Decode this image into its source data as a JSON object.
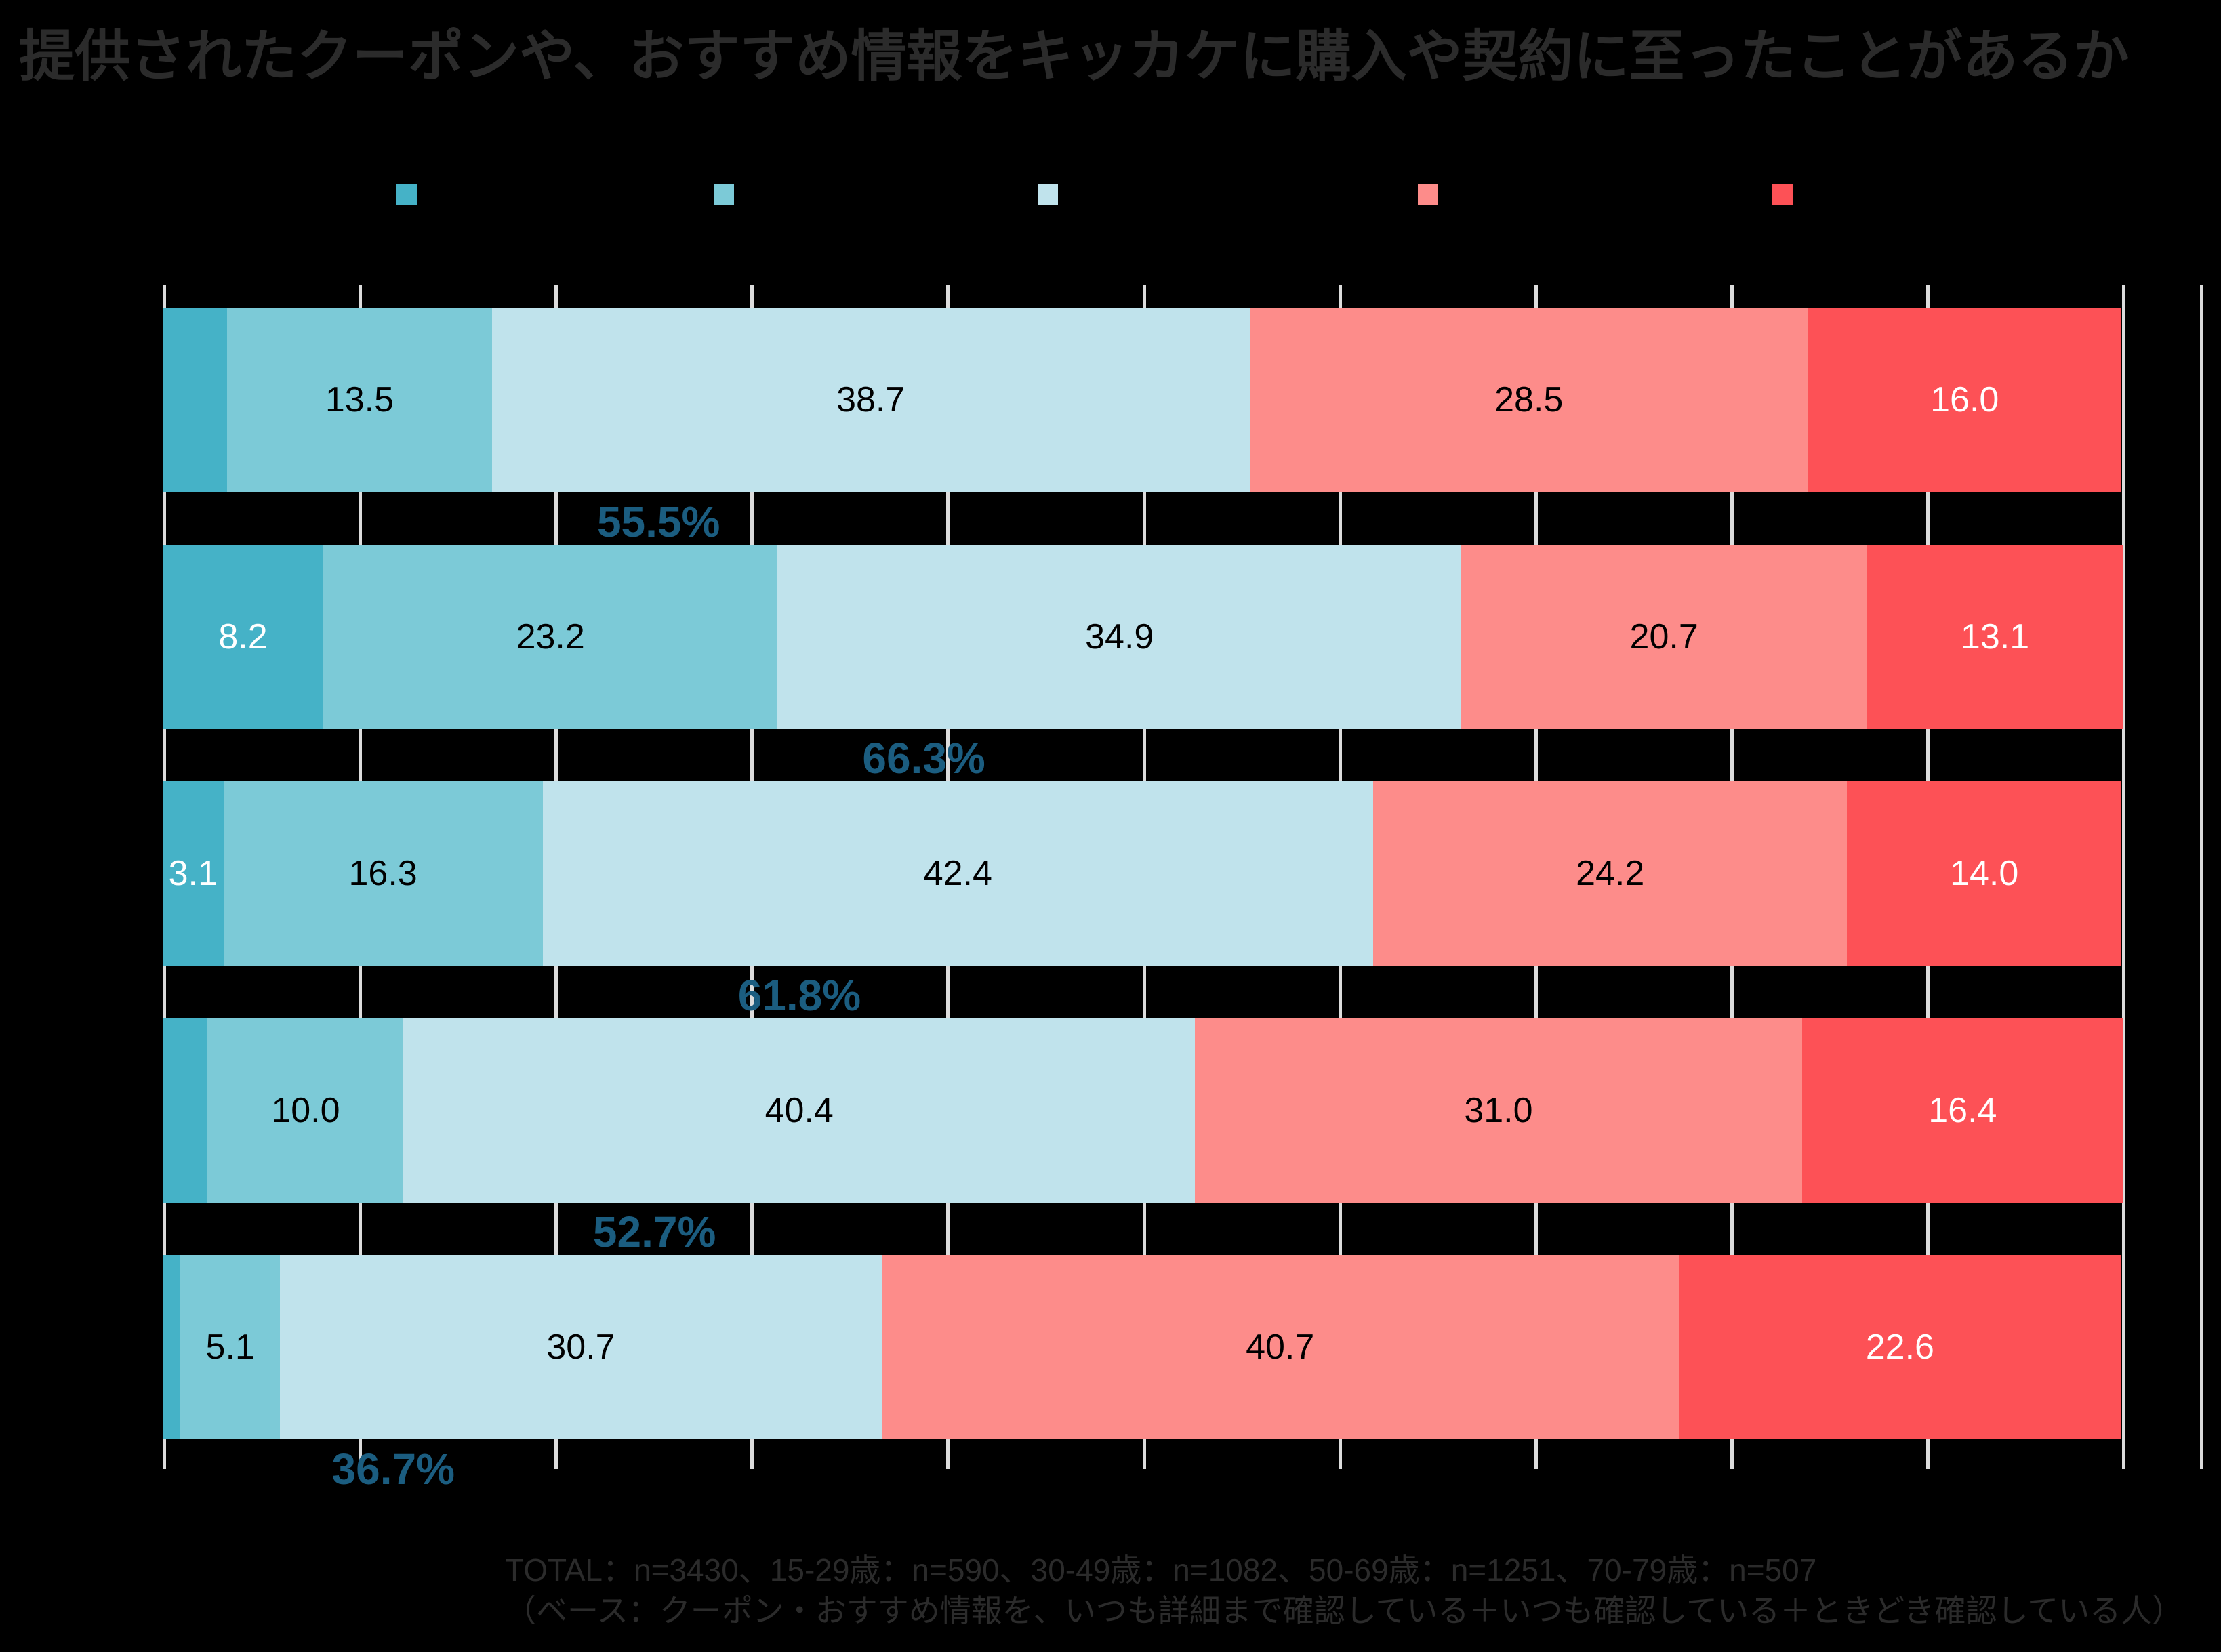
{
  "title": "提供されたクーポンや、おすすめ情報をキッカケに購入や契約に至ったことがあるか",
  "palette": {
    "background": "#000000",
    "faint_text": "#2b2b2b",
    "gridline": "#dcdcdc",
    "subtotal_text": "#1b5d80",
    "segment_label_dark": "#000000",
    "segment_label_light": "#ffffff"
  },
  "legend": {
    "labels_visible": false,
    "swatches": [
      {
        "name": "series-1-swatch",
        "color": "#45b2c7"
      },
      {
        "name": "series-2-swatch",
        "color": "#7ccad7"
      },
      {
        "name": "series-3-swatch",
        "color": "#c0e3ec"
      },
      {
        "name": "series-4-swatch",
        "color": "#fd8c8a"
      },
      {
        "name": "series-5-swatch",
        "color": "#fd5156"
      }
    ]
  },
  "chart_data": {
    "type": "bar",
    "orientation": "horizontal",
    "stacked": true,
    "title": "提供されたクーポンや、おすすめ情報をキッカケに購入や契約に至ったことがあるか",
    "axis": {
      "min": 0,
      "max": 100,
      "gridline_step": 10,
      "tick_labels_visible": false,
      "grid": true
    },
    "category_labels_visible": false,
    "series_colors": [
      "#45b2c7",
      "#7ccad7",
      "#c0e3ec",
      "#fd8c8a",
      "#fd5156"
    ],
    "rows": [
      {
        "segments": [
          {
            "value": 3.3,
            "label": ""
          },
          {
            "value": 13.5,
            "label": "13.5"
          },
          {
            "value": 38.7,
            "label": "38.7"
          },
          {
            "value": 28.5,
            "label": "28.5"
          },
          {
            "value": 16.0,
            "label": "16.0"
          }
        ],
        "subtotal": "55.5%"
      },
      {
        "segments": [
          {
            "value": 8.2,
            "label": "8.2"
          },
          {
            "value": 23.2,
            "label": "23.2"
          },
          {
            "value": 34.9,
            "label": "34.9"
          },
          {
            "value": 20.7,
            "label": "20.7"
          },
          {
            "value": 13.1,
            "label": "13.1"
          }
        ],
        "subtotal": "66.3%"
      },
      {
        "segments": [
          {
            "value": 3.1,
            "label": "3.1"
          },
          {
            "value": 16.3,
            "label": "16.3"
          },
          {
            "value": 42.4,
            "label": "42.4"
          },
          {
            "value": 24.2,
            "label": "24.2"
          },
          {
            "value": 14.0,
            "label": "14.0"
          }
        ],
        "subtotal": "61.8%"
      },
      {
        "segments": [
          {
            "value": 2.3,
            "label": ""
          },
          {
            "value": 10.0,
            "label": "10.0"
          },
          {
            "value": 40.4,
            "label": "40.4"
          },
          {
            "value": 31.0,
            "label": "31.0"
          },
          {
            "value": 16.4,
            "label": "16.4"
          }
        ],
        "subtotal": "52.7%"
      },
      {
        "segments": [
          {
            "value": 0.9,
            "label": ""
          },
          {
            "value": 5.1,
            "label": "5.1"
          },
          {
            "value": 30.7,
            "label": "30.7"
          },
          {
            "value": 40.7,
            "label": "40.7"
          },
          {
            "value": 22.6,
            "label": "22.6"
          }
        ],
        "subtotal": "36.7%"
      }
    ]
  },
  "footnote": {
    "line1": "TOTAL：n=3430、15-29歳：n=590、30-49歳：n=1082、50-69歳：n=1251、70-79歳：n=507",
    "line2": "（ベース：クーポン・おすすめ情報を、いつも詳細まで確認している＋いつも確認している＋ときどき確認している人）"
  }
}
